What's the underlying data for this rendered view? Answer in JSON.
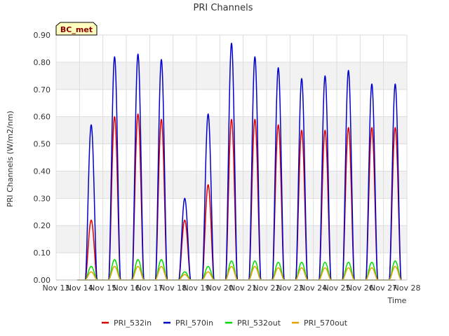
{
  "chart_data": {
    "type": "line",
    "title": "PRI Channels",
    "xlabel": "Time",
    "ylabel": "PRI Channels (W/m2/nm)",
    "badge": "BC_met",
    "ylim": [
      0,
      0.9
    ],
    "xlim": [
      13,
      28
    ],
    "y_ticks": [
      {
        "v": 0.0,
        "label": "0.00"
      },
      {
        "v": 0.1,
        "label": "0.10"
      },
      {
        "v": 0.2,
        "label": "0.20"
      },
      {
        "v": 0.3,
        "label": "0.30"
      },
      {
        "v": 0.4,
        "label": "0.40"
      },
      {
        "v": 0.5,
        "label": "0.50"
      },
      {
        "v": 0.6,
        "label": "0.60"
      },
      {
        "v": 0.7,
        "label": "0.70"
      },
      {
        "v": 0.8,
        "label": "0.80"
      },
      {
        "v": 0.9,
        "label": "0.90"
      }
    ],
    "x_ticks": [
      {
        "v": 13,
        "label": "Nov 13"
      },
      {
        "v": 14,
        "label": "Nov 14"
      },
      {
        "v": 15,
        "label": "Nov 15"
      },
      {
        "v": 16,
        "label": "Nov 16"
      },
      {
        "v": 17,
        "label": "Nov 17"
      },
      {
        "v": 18,
        "label": "Nov 18"
      },
      {
        "v": 19,
        "label": "Nov 19"
      },
      {
        "v": 20,
        "label": "Nov 20"
      },
      {
        "v": 21,
        "label": "Nov 21"
      },
      {
        "v": 22,
        "label": "Nov 22"
      },
      {
        "v": 23,
        "label": "Nov 23"
      },
      {
        "v": 24,
        "label": "Nov 24"
      },
      {
        "v": 25,
        "label": "Nov 25"
      },
      {
        "v": 26,
        "label": "Nov 26"
      },
      {
        "v": 27,
        "label": "Nov 27"
      },
      {
        "v": 28,
        "label": "Nov 28"
      }
    ],
    "days": [
      14,
      15,
      16,
      17,
      18,
      19,
      20,
      21,
      22,
      23,
      24,
      25,
      26,
      27
    ],
    "series": [
      {
        "name": "PRI_532in",
        "color": "#dd0000",
        "peaks": [
          0.22,
          0.6,
          0.61,
          0.59,
          0.22,
          0.35,
          0.59,
          0.59,
          0.57,
          0.55,
          0.55,
          0.56,
          0.56,
          0.56
        ]
      },
      {
        "name": "PRI_570in",
        "color": "#0000cc",
        "peaks": [
          0.57,
          0.82,
          0.83,
          0.81,
          0.3,
          0.61,
          0.87,
          0.82,
          0.78,
          0.74,
          0.75,
          0.77,
          0.72,
          0.72
        ]
      },
      {
        "name": "PRI_532out",
        "color": "#00dd00",
        "peaks": [
          0.05,
          0.075,
          0.075,
          0.075,
          0.03,
          0.05,
          0.07,
          0.07,
          0.065,
          0.065,
          0.065,
          0.065,
          0.065,
          0.07
        ]
      },
      {
        "name": "PRI_570out",
        "color": "#e6a000",
        "peaks": [
          0.03,
          0.05,
          0.05,
          0.05,
          0.02,
          0.03,
          0.05,
          0.05,
          0.045,
          0.045,
          0.045,
          0.045,
          0.045,
          0.05
        ]
      }
    ]
  }
}
